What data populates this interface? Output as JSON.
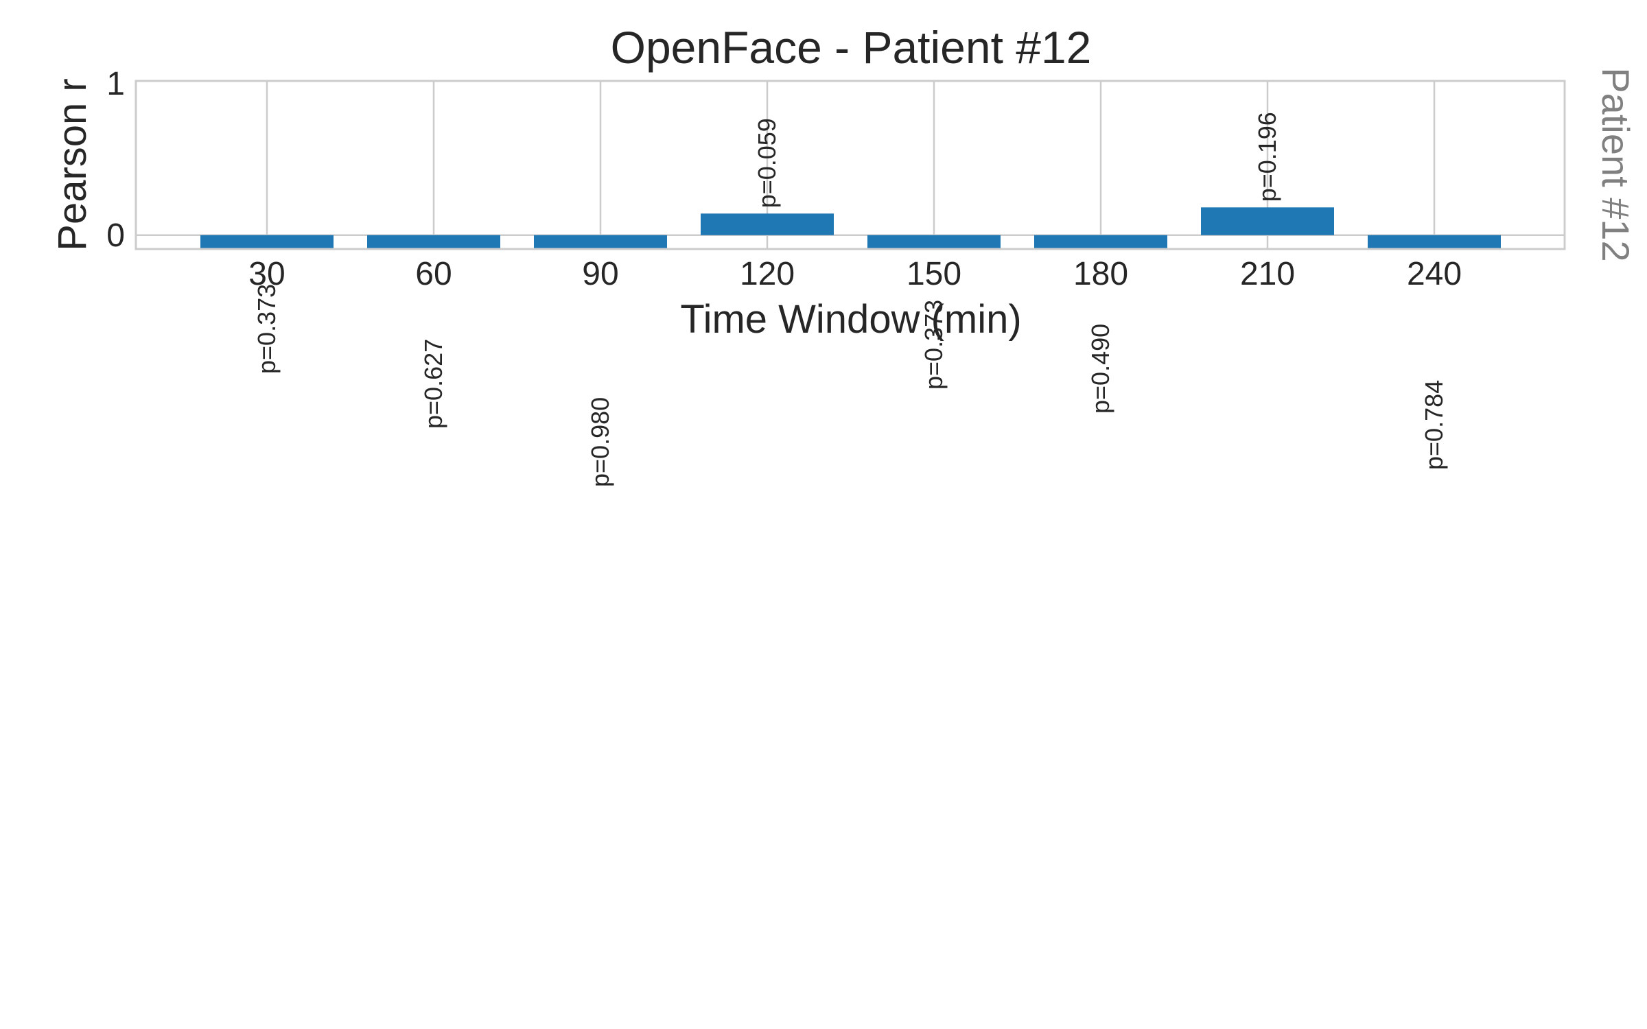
{
  "chart_data": {
    "type": "bar",
    "title": "OpenFace - Patient #12",
    "xlabel": "Time Window (min)",
    "ylabel": "Pearson r",
    "side_label": "Patient #12",
    "categories": [
      "30",
      "60",
      "90",
      "120",
      "150",
      "180",
      "210",
      "240"
    ],
    "values": [
      -0.09,
      -0.09,
      -0.09,
      0.14,
      -0.09,
      -0.09,
      0.18,
      -0.09
    ],
    "annotations": [
      "p=0.373",
      "p=0.627",
      "p=0.980",
      "p=0.059",
      "p=0.373",
      "p=0.490",
      "p=0.196",
      "p=0.784"
    ],
    "ylim": [
      -0.09,
      1.0
    ],
    "yticks": [
      "0",
      "1"
    ],
    "grid": true,
    "bar_color": "#1f77b4"
  }
}
